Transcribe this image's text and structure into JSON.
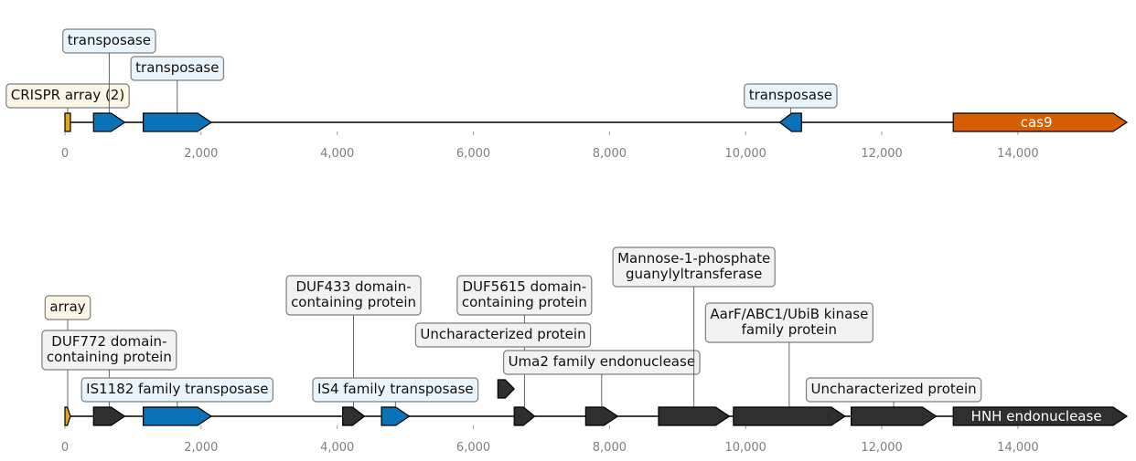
{
  "colors": {
    "crispr": "#e6a11a",
    "transposase": "#0a72b7",
    "cas9": "#d55e00",
    "other": "#2f2f2f",
    "label_box_blue": "#e9f4fc",
    "label_box_yellow": "#fdf6e6",
    "label_box_grey": "#f2f2f2"
  },
  "tracks": [
    {
      "name": "track-top",
      "axis": {
        "min": 0,
        "max": 15600,
        "ticks": [
          "0",
          "2,000",
          "4,000",
          "6,000",
          "8,000",
          "10,000",
          "12,000",
          "14,000"
        ],
        "tick_values": [
          0,
          2000,
          4000,
          6000,
          8000,
          10000,
          12000,
          14000
        ]
      },
      "features": [
        {
          "start": 0,
          "end": 80,
          "strand": 0,
          "kind": "crispr",
          "label": "CRISPR array (2)",
          "inside": false,
          "box": "yellow"
        },
        {
          "start": 420,
          "end": 880,
          "strand": 1,
          "kind": "transposase",
          "label": "transposase",
          "inside": false,
          "box": "blue"
        },
        {
          "start": 1150,
          "end": 2150,
          "strand": 1,
          "kind": "transposase",
          "label": "transposase",
          "inside": false,
          "box": "blue"
        },
        {
          "start": 10500,
          "end": 10820,
          "strand": -1,
          "kind": "transposase",
          "label": "transposase",
          "inside": false,
          "box": "blue"
        },
        {
          "start": 13050,
          "end": 15600,
          "strand": 1,
          "kind": "cas9",
          "label": "cas9",
          "inside": true
        }
      ]
    },
    {
      "name": "track-bottom",
      "axis": {
        "min": 0,
        "max": 15600,
        "ticks": [
          "0",
          "2,000",
          "4,000",
          "6,000",
          "8,000",
          "10,000",
          "12,000",
          "14,000"
        ],
        "tick_values": [
          0,
          2000,
          4000,
          6000,
          8000,
          10000,
          12000,
          14000
        ]
      },
      "features": [
        {
          "start": 0,
          "end": 70,
          "strand": 1,
          "kind": "crispr",
          "label": "array",
          "inside": false,
          "box": "yellow"
        },
        {
          "start": 420,
          "end": 880,
          "strand": 1,
          "kind": "other",
          "label": "DUF772 domain-\ncontaining protein",
          "inside": false,
          "box": "grey"
        },
        {
          "start": 1150,
          "end": 2150,
          "strand": 1,
          "kind": "transposase",
          "label": "IS1182 family transposase",
          "inside": false,
          "box": "blue"
        },
        {
          "start": 4080,
          "end": 4400,
          "strand": 1,
          "kind": "other",
          "label": "DUF433 domain-\ncontaining protein",
          "inside": false,
          "box": "grey"
        },
        {
          "start": 4650,
          "end": 5060,
          "strand": 1,
          "kind": "transposase",
          "label": "IS4 family transposase",
          "inside": false,
          "box": "blue"
        },
        {
          "start": 6600,
          "end": 6900,
          "strand": 1,
          "kind": "other",
          "label": "DUF5615 domain-\ncontaining protein",
          "inside": false,
          "box": "grey"
        },
        {
          "start": 7650,
          "end": 8120,
          "strand": 1,
          "kind": "other",
          "label": "Uma2 family endonuclease",
          "inside": false,
          "box": "grey"
        },
        {
          "start": 8720,
          "end": 9760,
          "strand": 1,
          "kind": "other",
          "label": "Mannose-1-phosphate\nguanylyltransferase",
          "inside": false,
          "box": "grey"
        },
        {
          "start": 9820,
          "end": 11460,
          "strand": 1,
          "kind": "other",
          "label": "AarF/ABC1/UbiB kinase\nfamily protein",
          "inside": false,
          "box": "grey"
        },
        {
          "start": 11550,
          "end": 12800,
          "strand": 1,
          "kind": "other",
          "label": "Uncharacterized protein",
          "inside": false,
          "box": "grey"
        },
        {
          "start": 13050,
          "end": 15600,
          "strand": 1,
          "kind": "other",
          "label": "HNH endonuclease",
          "inside": true
        }
      ],
      "floating": [
        {
          "start": 6360,
          "end": 6600,
          "strand": 1,
          "kind": "other",
          "label": "Uncharacterized protein",
          "box": "grey"
        }
      ]
    }
  ]
}
